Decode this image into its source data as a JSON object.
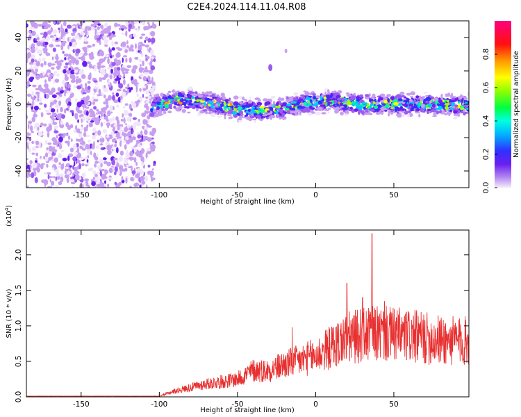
{
  "title": "C2E4.2024.114.11.04.R08",
  "colors": {
    "snr_line": "#e83030",
    "spectrum_colormap": [
      "#f0e6fa",
      "#c79ef0",
      "#9b5bf0",
      "#6a1ff0",
      "#3030ff",
      "#00c8ff",
      "#00ff90",
      "#a0ff00",
      "#ffff00",
      "#ff9900",
      "#ff1010",
      "#ff0080"
    ]
  },
  "chart_data": [
    {
      "type": "heatmap",
      "name": "spectrogram",
      "xlabel": "Height of straight line (km)",
      "ylabel": "Frequency (Hz)",
      "xlim": [
        -185,
        98
      ],
      "ylim": [
        -50,
        50
      ],
      "xticks": [
        -150,
        -100,
        -50,
        0,
        50
      ],
      "xtick_labels": [
        "-150",
        "-100",
        "-50",
        "0",
        "50"
      ],
      "yticks": [
        -40,
        -20,
        0,
        20,
        40
      ],
      "ytick_labels": [
        "-40",
        "-20",
        "0",
        "20",
        "40"
      ],
      "regions": [
        {
          "desc": "noise",
          "x": [
            -185,
            -103
          ],
          "y": [
            -50,
            50
          ],
          "amplitude": 0.08
        },
        {
          "desc": "signal band",
          "x": [
            -105,
            98
          ],
          "y_center": [
            0,
            0
          ],
          "y_halfwidth": 6,
          "amplitude": 0.7
        },
        {
          "desc": "blob",
          "x": [
            -30,
            -28
          ],
          "y": [
            21,
            23
          ],
          "amplitude": 0.15
        }
      ],
      "band_centerline": [
        {
          "x": -105,
          "y": -2
        },
        {
          "x": -90,
          "y": 3
        },
        {
          "x": -70,
          "y": 1
        },
        {
          "x": -50,
          "y": -3
        },
        {
          "x": -35,
          "y": -4
        },
        {
          "x": -20,
          "y": -2
        },
        {
          "x": -5,
          "y": 1
        },
        {
          "x": 10,
          "y": 2
        },
        {
          "x": 25,
          "y": 0
        },
        {
          "x": 50,
          "y": 0
        },
        {
          "x": 75,
          "y": 0
        },
        {
          "x": 98,
          "y": -1
        }
      ]
    },
    {
      "type": "line",
      "name": "snr",
      "xlabel": "Height of straight line (km)",
      "ylabel": "SNR (10 * v/v)",
      "exponent_label": "(x10",
      "exponent_power": "4",
      "exponent_close": ")",
      "xlim": [
        -185,
        98
      ],
      "ylim": [
        0,
        2.35
      ],
      "xticks": [
        -150,
        -100,
        -50,
        0,
        50
      ],
      "xtick_labels": [
        "-150",
        "-100",
        "-50",
        "0",
        "50"
      ],
      "yticks": [
        0.0,
        0.5,
        1.0,
        1.5,
        2.0
      ],
      "ytick_labels": [
        "0.0",
        "0.5",
        "1.0",
        "1.5",
        "2.0"
      ],
      "envelope": [
        {
          "x": -185,
          "y": 0.01
        },
        {
          "x": -100,
          "y": 0.01
        },
        {
          "x": -90,
          "y": 0.1
        },
        {
          "x": -70,
          "y": 0.22
        },
        {
          "x": -50,
          "y": 0.3
        },
        {
          "x": -40,
          "y": 0.45
        },
        {
          "x": -30,
          "y": 0.45
        },
        {
          "x": -20,
          "y": 0.55
        },
        {
          "x": -10,
          "y": 0.62
        },
        {
          "x": 0,
          "y": 0.7
        },
        {
          "x": 10,
          "y": 0.85
        },
        {
          "x": 20,
          "y": 1.0
        },
        {
          "x": 30,
          "y": 1.05
        },
        {
          "x": 40,
          "y": 1.08
        },
        {
          "x": 55,
          "y": 1.05
        },
        {
          "x": 70,
          "y": 1.0
        },
        {
          "x": 85,
          "y": 0.95
        },
        {
          "x": 98,
          "y": 0.95
        }
      ],
      "peaks": [
        {
          "x": -15,
          "y": 0.98
        },
        {
          "x": -14,
          "y": 0.62
        },
        {
          "x": 36,
          "y": 2.3
        },
        {
          "x": 30,
          "y": 1.4
        },
        {
          "x": 44,
          "y": 1.35
        },
        {
          "x": 20,
          "y": 1.6
        }
      ]
    }
  ],
  "colorbar": {
    "label": "Normalized spectral amplitude",
    "range": [
      0,
      1
    ],
    "ticks": [
      0.0,
      0.2,
      0.4,
      0.6,
      0.8
    ],
    "tick_labels": [
      "0.0",
      "0.2",
      "0.4",
      "0.6",
      "0.8"
    ]
  }
}
